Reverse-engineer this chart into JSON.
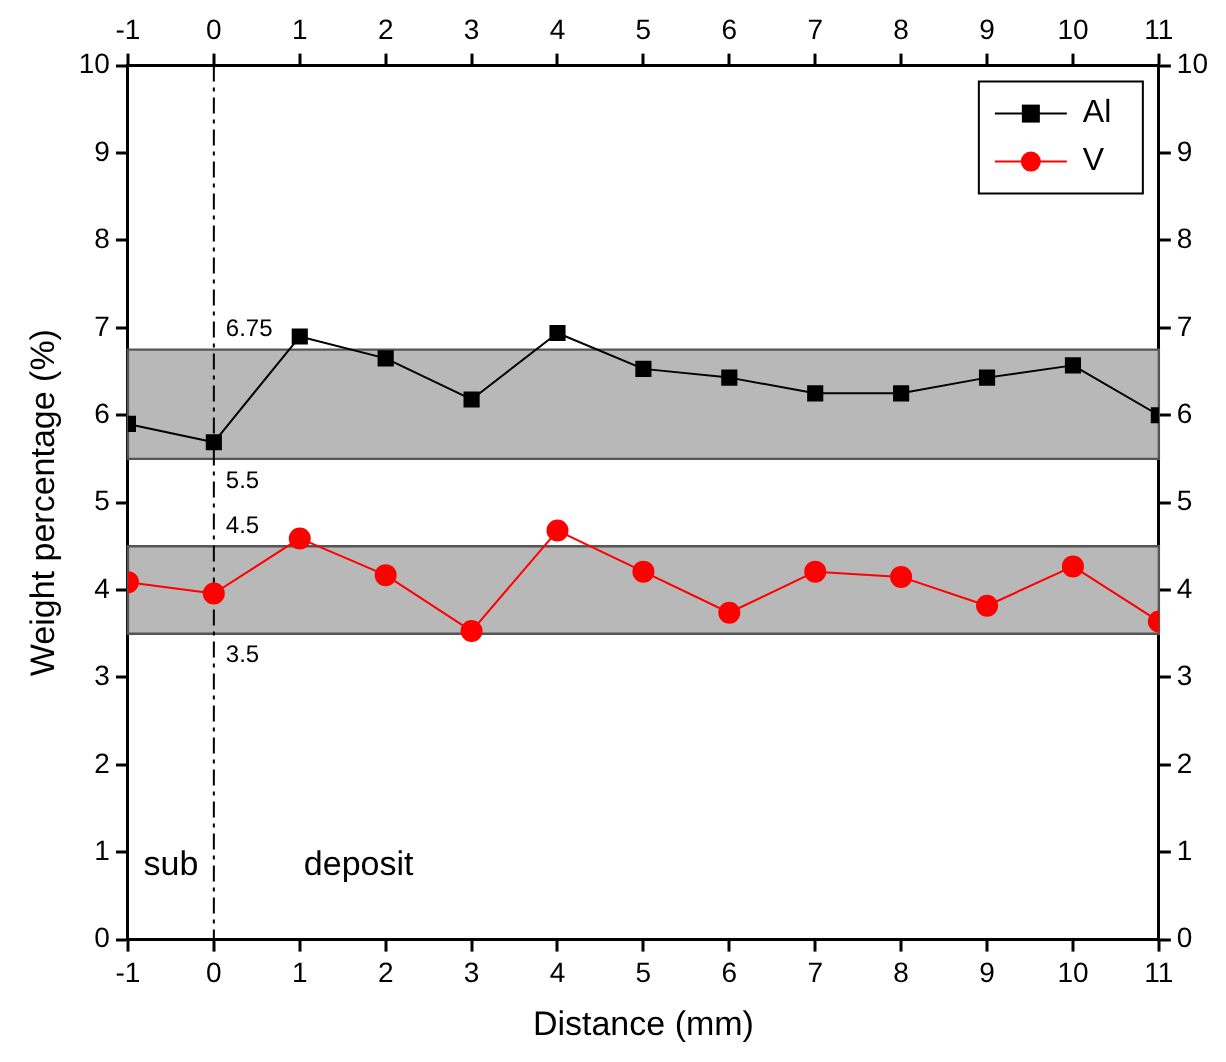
{
  "chart_data": {
    "type": "line",
    "xlabel": "Distance (mm)",
    "ylabel": "Weight percentage (%)",
    "x": [
      -1,
      0,
      1,
      2,
      3,
      4,
      5,
      6,
      7,
      8,
      9,
      10,
      11
    ],
    "series": [
      {
        "name": "Al",
        "color": "#000000",
        "marker": "square",
        "values": [
          5.9,
          5.69,
          6.9,
          6.65,
          6.18,
          6.94,
          6.53,
          6.43,
          6.25,
          6.25,
          6.43,
          6.57,
          6.0
        ]
      },
      {
        "name": "V",
        "color": "#ff0000",
        "marker": "circle",
        "values": [
          4.09,
          3.96,
          4.59,
          4.17,
          3.53,
          4.68,
          4.21,
          3.74,
          4.21,
          4.15,
          3.82,
          4.27,
          3.64
        ]
      }
    ],
    "xlim": [
      -1,
      11
    ],
    "xticks": [
      -1,
      0,
      1,
      2,
      3,
      4,
      5,
      6,
      7,
      8,
      9,
      10,
      11
    ],
    "x2lim": [
      -1,
      11
    ],
    "x2ticks": [
      -1,
      0,
      1,
      2,
      3,
      4,
      5,
      6,
      7,
      8,
      9,
      10,
      11
    ],
    "ylim": [
      0,
      10
    ],
    "yticks": [
      0,
      1,
      2,
      3,
      4,
      5,
      6,
      7,
      8,
      9,
      10
    ],
    "y2lim": [
      0,
      10
    ],
    "y2ticks": [
      0,
      1,
      2,
      3,
      4,
      5,
      6,
      7,
      8,
      9,
      10
    ],
    "bands": [
      {
        "axis": "y",
        "from": 5.5,
        "to": 6.75,
        "color": "#b8b8b8"
      },
      {
        "axis": "y",
        "from": 3.5,
        "to": 4.5,
        "color": "#b8b8b8"
      }
    ],
    "ref_lines": [
      {
        "axis": "x",
        "value": 0,
        "color": "#000000",
        "line_style": "dashdot"
      }
    ],
    "annotations": [
      {
        "text": "6.75",
        "y": 6.75
      },
      {
        "text": "5.5",
        "y": 5.5
      },
      {
        "text": "4.5",
        "y": 4.5
      },
      {
        "text": "3.5",
        "y": 3.5
      },
      "sub",
      "deposit"
    ],
    "grid": false,
    "legend": "top right"
  }
}
